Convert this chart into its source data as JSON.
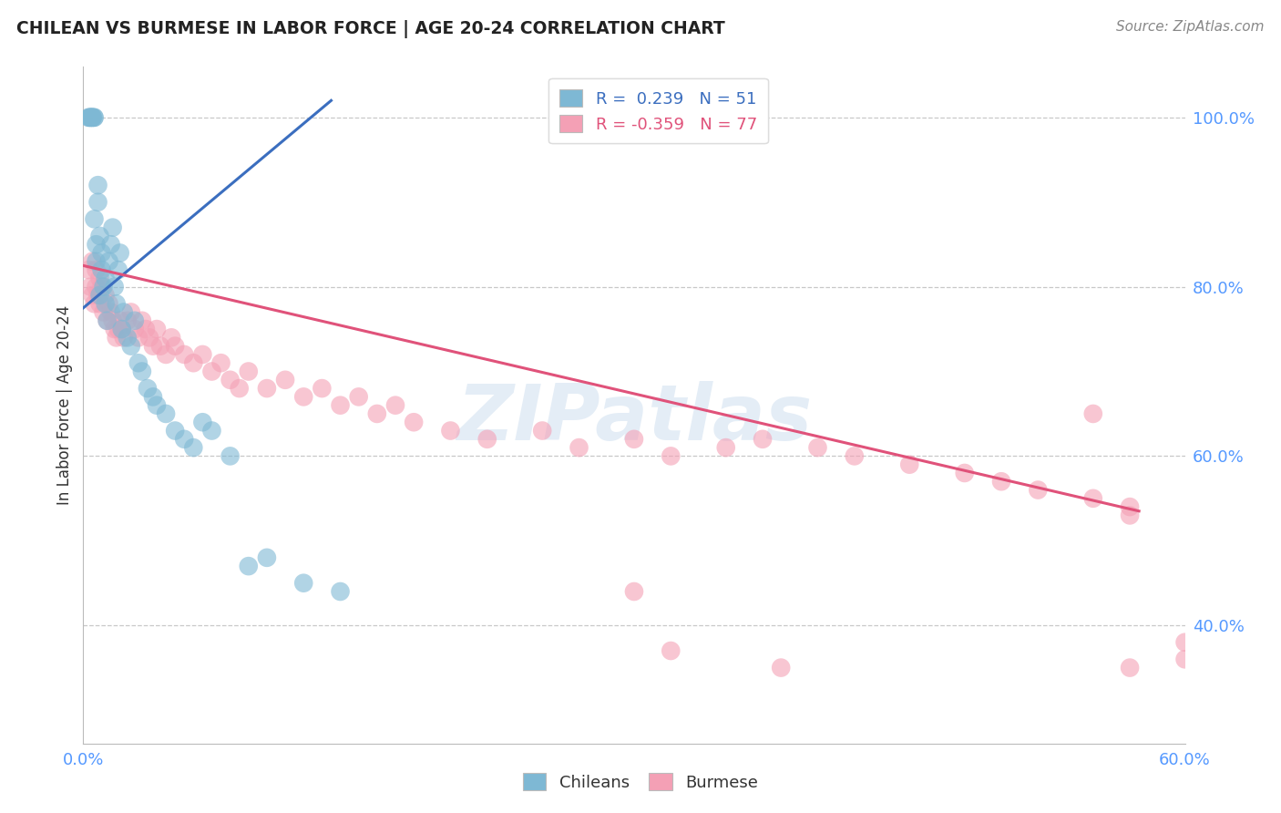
{
  "title": "CHILEAN VS BURMESE IN LABOR FORCE | AGE 20-24 CORRELATION CHART",
  "source": "Source: ZipAtlas.com",
  "ylabel": "In Labor Force | Age 20-24",
  "xlim": [
    0.0,
    0.6
  ],
  "ylim": [
    0.26,
    1.06
  ],
  "xtick_positions": [
    0.0,
    0.1,
    0.2,
    0.3,
    0.4,
    0.5,
    0.6
  ],
  "xtick_labels": [
    "0.0%",
    "",
    "",
    "",
    "",
    "",
    "60.0%"
  ],
  "ytick_right_positions": [
    0.4,
    0.6,
    0.8,
    1.0
  ],
  "ytick_right_labels": [
    "40.0%",
    "60.0%",
    "80.0%",
    "100.0%"
  ],
  "chilean_R": 0.239,
  "chilean_N": 51,
  "burmese_R": -0.359,
  "burmese_N": 77,
  "chilean_color": "#7EB8D4",
  "burmese_color": "#F4A0B5",
  "chilean_line_color": "#3B6EBF",
  "burmese_line_color": "#E0527A",
  "background_color": "#FFFFFF",
  "grid_color": "#C8C8C8",
  "watermark": "ZIPatlas",
  "blue_line_x": [
    0.0,
    0.135
  ],
  "blue_line_y": [
    0.775,
    1.02
  ],
  "pink_line_x": [
    0.0,
    0.575
  ],
  "pink_line_y": [
    0.825,
    0.535
  ],
  "chilean_x": [
    0.003,
    0.003,
    0.004,
    0.004,
    0.004,
    0.005,
    0.005,
    0.005,
    0.006,
    0.006,
    0.006,
    0.007,
    0.007,
    0.008,
    0.008,
    0.009,
    0.009,
    0.01,
    0.01,
    0.011,
    0.012,
    0.012,
    0.013,
    0.014,
    0.015,
    0.016,
    0.017,
    0.018,
    0.019,
    0.02,
    0.021,
    0.022,
    0.024,
    0.026,
    0.028,
    0.03,
    0.032,
    0.035,
    0.038,
    0.04,
    0.045,
    0.05,
    0.055,
    0.06,
    0.065,
    0.07,
    0.08,
    0.09,
    0.1,
    0.12,
    0.14
  ],
  "chilean_y": [
    1.0,
    1.0,
    1.0,
    1.0,
    1.0,
    1.0,
    1.0,
    1.0,
    1.0,
    1.0,
    0.88,
    0.85,
    0.83,
    0.9,
    0.92,
    0.86,
    0.79,
    0.82,
    0.84,
    0.8,
    0.78,
    0.81,
    0.76,
    0.83,
    0.85,
    0.87,
    0.8,
    0.78,
    0.82,
    0.84,
    0.75,
    0.77,
    0.74,
    0.73,
    0.76,
    0.71,
    0.7,
    0.68,
    0.67,
    0.66,
    0.65,
    0.63,
    0.62,
    0.61,
    0.64,
    0.63,
    0.6,
    0.47,
    0.48,
    0.45,
    0.44
  ],
  "burmese_x": [
    0.003,
    0.004,
    0.005,
    0.005,
    0.006,
    0.007,
    0.007,
    0.008,
    0.009,
    0.009,
    0.01,
    0.011,
    0.012,
    0.013,
    0.014,
    0.015,
    0.016,
    0.017,
    0.018,
    0.019,
    0.02,
    0.021,
    0.022,
    0.024,
    0.026,
    0.028,
    0.03,
    0.032,
    0.034,
    0.036,
    0.038,
    0.04,
    0.042,
    0.045,
    0.048,
    0.05,
    0.055,
    0.06,
    0.065,
    0.07,
    0.075,
    0.08,
    0.085,
    0.09,
    0.1,
    0.11,
    0.12,
    0.13,
    0.14,
    0.15,
    0.16,
    0.17,
    0.18,
    0.2,
    0.22,
    0.25,
    0.27,
    0.3,
    0.32,
    0.35,
    0.37,
    0.4,
    0.42,
    0.45,
    0.48,
    0.5,
    0.52,
    0.55,
    0.57,
    0.3,
    0.32,
    0.38,
    0.55,
    0.57,
    0.6,
    0.6,
    0.57
  ],
  "burmese_y": [
    0.82,
    0.8,
    0.79,
    0.83,
    0.78,
    0.82,
    0.8,
    0.79,
    0.81,
    0.78,
    0.8,
    0.77,
    0.79,
    0.76,
    0.78,
    0.77,
    0.76,
    0.75,
    0.74,
    0.75,
    0.76,
    0.75,
    0.74,
    0.76,
    0.77,
    0.75,
    0.74,
    0.76,
    0.75,
    0.74,
    0.73,
    0.75,
    0.73,
    0.72,
    0.74,
    0.73,
    0.72,
    0.71,
    0.72,
    0.7,
    0.71,
    0.69,
    0.68,
    0.7,
    0.68,
    0.69,
    0.67,
    0.68,
    0.66,
    0.67,
    0.65,
    0.66,
    0.64,
    0.63,
    0.62,
    0.63,
    0.61,
    0.62,
    0.6,
    0.61,
    0.62,
    0.61,
    0.6,
    0.59,
    0.58,
    0.57,
    0.56,
    0.55,
    0.54,
    0.44,
    0.37,
    0.35,
    0.65,
    0.53,
    0.38,
    0.36,
    0.35
  ]
}
